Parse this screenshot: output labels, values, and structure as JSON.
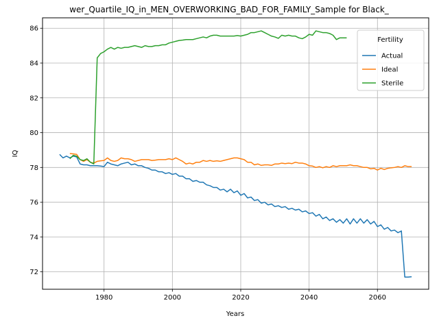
{
  "chart_data": {
    "type": "line",
    "title": "wer_Quartile_IQ_in_MEN_OVERWORKING_BAD_FOR_FAMILY_Sample for Black_",
    "xlabel": "Years",
    "ylabel": "IQ",
    "xlim": [
      1962,
      2075
    ],
    "ylim": [
      71.0,
      86.6
    ],
    "xticks": [
      1980,
      2000,
      2020,
      2040,
      2060
    ],
    "yticks": [
      72,
      74,
      76,
      78,
      80,
      82,
      84,
      86
    ],
    "grid": true,
    "legend": {
      "title": "Fertility",
      "placement": "top-right"
    },
    "series": [
      {
        "name": "Actual",
        "color": "#1f77b4",
        "points": [
          [
            1967,
            78.75
          ],
          [
            1968,
            78.55
          ],
          [
            1969,
            78.65
          ],
          [
            1970,
            78.55
          ],
          [
            1971,
            78.65
          ],
          [
            1972,
            78.6
          ],
          [
            1973,
            78.2
          ],
          [
            1974,
            78.15
          ],
          [
            1975,
            78.15
          ],
          [
            1976,
            78.1
          ],
          [
            1977,
            78.1
          ],
          [
            1978,
            78.1
          ],
          [
            1979,
            78.08
          ],
          [
            1980,
            78.05
          ],
          [
            1981,
            78.3
          ],
          [
            1982,
            78.2
          ],
          [
            1983,
            78.15
          ],
          [
            1984,
            78.1
          ],
          [
            1985,
            78.2
          ],
          [
            1986,
            78.25
          ],
          [
            1987,
            78.3
          ],
          [
            1988,
            78.15
          ],
          [
            1989,
            78.2
          ],
          [
            1990,
            78.1
          ],
          [
            1991,
            78.1
          ],
          [
            1992,
            78.0
          ],
          [
            1993,
            77.95
          ],
          [
            1994,
            77.85
          ],
          [
            1995,
            77.85
          ],
          [
            1996,
            77.75
          ],
          [
            1997,
            77.75
          ],
          [
            1998,
            77.65
          ],
          [
            1999,
            77.7
          ],
          [
            2000,
            77.6
          ],
          [
            2001,
            77.65
          ],
          [
            2002,
            77.5
          ],
          [
            2003,
            77.5
          ],
          [
            2004,
            77.35
          ],
          [
            2005,
            77.35
          ],
          [
            2006,
            77.2
          ],
          [
            2007,
            77.25
          ],
          [
            2008,
            77.15
          ],
          [
            2009,
            77.15
          ],
          [
            2010,
            77.0
          ],
          [
            2011,
            76.95
          ],
          [
            2012,
            76.85
          ],
          [
            2013,
            76.85
          ],
          [
            2014,
            76.7
          ],
          [
            2015,
            76.75
          ],
          [
            2016,
            76.6
          ],
          [
            2017,
            76.75
          ],
          [
            2018,
            76.55
          ],
          [
            2019,
            76.65
          ],
          [
            2020,
            76.4
          ],
          [
            2021,
            76.5
          ],
          [
            2022,
            76.25
          ],
          [
            2023,
            76.3
          ],
          [
            2024,
            76.1
          ],
          [
            2025,
            76.15
          ],
          [
            2026,
            75.95
          ],
          [
            2027,
            76.0
          ],
          [
            2028,
            75.85
          ],
          [
            2029,
            75.9
          ],
          [
            2030,
            75.75
          ],
          [
            2031,
            75.8
          ],
          [
            2032,
            75.7
          ],
          [
            2033,
            75.75
          ],
          [
            2034,
            75.6
          ],
          [
            2035,
            75.65
          ],
          [
            2036,
            75.55
          ],
          [
            2037,
            75.6
          ],
          [
            2038,
            75.45
          ],
          [
            2039,
            75.5
          ],
          [
            2040,
            75.35
          ],
          [
            2041,
            75.4
          ],
          [
            2042,
            75.2
          ],
          [
            2043,
            75.3
          ],
          [
            2044,
            75.05
          ],
          [
            2045,
            75.15
          ],
          [
            2046,
            74.95
          ],
          [
            2047,
            75.05
          ],
          [
            2048,
            74.85
          ],
          [
            2049,
            75.0
          ],
          [
            2050,
            74.8
          ],
          [
            2051,
            75.05
          ],
          [
            2052,
            74.75
          ],
          [
            2053,
            75.05
          ],
          [
            2054,
            74.8
          ],
          [
            2055,
            75.05
          ],
          [
            2056,
            74.8
          ],
          [
            2057,
            75.0
          ],
          [
            2058,
            74.75
          ],
          [
            2059,
            74.9
          ],
          [
            2060,
            74.6
          ],
          [
            2061,
            74.7
          ],
          [
            2062,
            74.45
          ],
          [
            2063,
            74.55
          ],
          [
            2064,
            74.35
          ],
          [
            2065,
            74.4
          ],
          [
            2066,
            74.25
          ],
          [
            2067,
            74.35
          ],
          [
            2068,
            71.7
          ],
          [
            2069,
            71.7
          ],
          [
            2070,
            71.72
          ]
        ]
      },
      {
        "name": "Ideal",
        "color": "#ff7f0e",
        "points": [
          [
            1970,
            78.8
          ],
          [
            1971,
            78.78
          ],
          [
            1972,
            78.75
          ],
          [
            1973,
            78.45
          ],
          [
            1974,
            78.35
          ],
          [
            1975,
            78.45
          ],
          [
            1976,
            78.3
          ],
          [
            1977,
            78.25
          ],
          [
            1978,
            78.35
          ],
          [
            1979,
            78.38
          ],
          [
            1980,
            78.4
          ],
          [
            1981,
            78.55
          ],
          [
            1982,
            78.4
          ],
          [
            1983,
            78.35
          ],
          [
            1984,
            78.4
          ],
          [
            1985,
            78.55
          ],
          [
            1986,
            78.5
          ],
          [
            1987,
            78.5
          ],
          [
            1988,
            78.45
          ],
          [
            1989,
            78.35
          ],
          [
            1990,
            78.4
          ],
          [
            1991,
            78.45
          ],
          [
            1992,
            78.45
          ],
          [
            1993,
            78.45
          ],
          [
            1994,
            78.4
          ],
          [
            1995,
            78.42
          ],
          [
            1996,
            78.45
          ],
          [
            1997,
            78.45
          ],
          [
            1998,
            78.45
          ],
          [
            1999,
            78.5
          ],
          [
            2000,
            78.45
          ],
          [
            2001,
            78.55
          ],
          [
            2002,
            78.45
          ],
          [
            2003,
            78.35
          ],
          [
            2004,
            78.2
          ],
          [
            2005,
            78.25
          ],
          [
            2006,
            78.2
          ],
          [
            2007,
            78.3
          ],
          [
            2008,
            78.3
          ],
          [
            2009,
            78.4
          ],
          [
            2010,
            78.35
          ],
          [
            2011,
            78.4
          ],
          [
            2012,
            78.35
          ],
          [
            2013,
            78.38
          ],
          [
            2014,
            78.35
          ],
          [
            2015,
            78.4
          ],
          [
            2016,
            78.45
          ],
          [
            2017,
            78.5
          ],
          [
            2018,
            78.55
          ],
          [
            2019,
            78.55
          ],
          [
            2020,
            78.5
          ],
          [
            2021,
            78.45
          ],
          [
            2022,
            78.3
          ],
          [
            2023,
            78.3
          ],
          [
            2024,
            78.15
          ],
          [
            2025,
            78.2
          ],
          [
            2026,
            78.12
          ],
          [
            2027,
            78.15
          ],
          [
            2028,
            78.15
          ],
          [
            2029,
            78.12
          ],
          [
            2030,
            78.2
          ],
          [
            2031,
            78.2
          ],
          [
            2032,
            78.25
          ],
          [
            2033,
            78.22
          ],
          [
            2034,
            78.25
          ],
          [
            2035,
            78.22
          ],
          [
            2036,
            78.3
          ],
          [
            2037,
            78.25
          ],
          [
            2038,
            78.25
          ],
          [
            2039,
            78.2
          ],
          [
            2040,
            78.1
          ],
          [
            2041,
            78.08
          ],
          [
            2042,
            78.0
          ],
          [
            2043,
            78.05
          ],
          [
            2044,
            77.98
          ],
          [
            2045,
            78.05
          ],
          [
            2046,
            78.0
          ],
          [
            2047,
            78.1
          ],
          [
            2048,
            78.05
          ],
          [
            2049,
            78.1
          ],
          [
            2050,
            78.1
          ],
          [
            2051,
            78.1
          ],
          [
            2052,
            78.15
          ],
          [
            2053,
            78.1
          ],
          [
            2054,
            78.1
          ],
          [
            2055,
            78.05
          ],
          [
            2056,
            78.0
          ],
          [
            2057,
            78.0
          ],
          [
            2058,
            77.92
          ],
          [
            2059,
            77.95
          ],
          [
            2060,
            77.85
          ],
          [
            2061,
            77.95
          ],
          [
            2062,
            77.88
          ],
          [
            2063,
            77.95
          ],
          [
            2064,
            77.98
          ],
          [
            2065,
            78.0
          ],
          [
            2066,
            78.05
          ],
          [
            2067,
            78.0
          ],
          [
            2068,
            78.1
          ],
          [
            2069,
            78.05
          ],
          [
            2070,
            78.05
          ]
        ]
      },
      {
        "name": "Sterile",
        "color": "#2ca02c",
        "points": [
          [
            1970,
            78.5
          ],
          [
            1971,
            78.7
          ],
          [
            1972,
            78.65
          ],
          [
            1973,
            78.45
          ],
          [
            1974,
            78.4
          ],
          [
            1975,
            78.5
          ],
          [
            1976,
            78.3
          ],
          [
            1977,
            78.2
          ],
          [
            1978,
            84.3
          ],
          [
            1979,
            84.55
          ],
          [
            1980,
            84.65
          ],
          [
            1981,
            84.8
          ],
          [
            1982,
            84.9
          ],
          [
            1983,
            84.8
          ],
          [
            1984,
            84.9
          ],
          [
            1985,
            84.85
          ],
          [
            1986,
            84.9
          ],
          [
            1987,
            84.9
          ],
          [
            1988,
            84.95
          ],
          [
            1989,
            85.0
          ],
          [
            1990,
            84.95
          ],
          [
            1991,
            84.9
          ],
          [
            1992,
            85.0
          ],
          [
            1993,
            84.95
          ],
          [
            1994,
            84.95
          ],
          [
            1995,
            85.0
          ],
          [
            1996,
            85.0
          ],
          [
            1997,
            85.05
          ],
          [
            1998,
            85.05
          ],
          [
            1999,
            85.15
          ],
          [
            2000,
            85.2
          ],
          [
            2001,
            85.25
          ],
          [
            2002,
            85.3
          ],
          [
            2003,
            85.32
          ],
          [
            2004,
            85.35
          ],
          [
            2005,
            85.35
          ],
          [
            2006,
            85.35
          ],
          [
            2007,
            85.4
          ],
          [
            2008,
            85.45
          ],
          [
            2009,
            85.5
          ],
          [
            2010,
            85.45
          ],
          [
            2011,
            85.55
          ],
          [
            2012,
            85.6
          ],
          [
            2013,
            85.6
          ],
          [
            2014,
            85.55
          ],
          [
            2015,
            85.55
          ],
          [
            2016,
            85.55
          ],
          [
            2017,
            85.55
          ],
          [
            2018,
            85.55
          ],
          [
            2019,
            85.58
          ],
          [
            2020,
            85.55
          ],
          [
            2021,
            85.6
          ],
          [
            2022,
            85.65
          ],
          [
            2023,
            85.75
          ],
          [
            2024,
            85.75
          ],
          [
            2025,
            85.8
          ],
          [
            2026,
            85.85
          ],
          [
            2027,
            85.75
          ],
          [
            2028,
            85.65
          ],
          [
            2029,
            85.55
          ],
          [
            2030,
            85.5
          ],
          [
            2031,
            85.42
          ],
          [
            2032,
            85.6
          ],
          [
            2033,
            85.55
          ],
          [
            2034,
            85.6
          ],
          [
            2035,
            85.55
          ],
          [
            2036,
            85.55
          ],
          [
            2037,
            85.45
          ],
          [
            2038,
            85.4
          ],
          [
            2039,
            85.5
          ],
          [
            2040,
            85.65
          ],
          [
            2041,
            85.6
          ],
          [
            2042,
            85.85
          ],
          [
            2043,
            85.8
          ],
          [
            2044,
            85.75
          ],
          [
            2045,
            85.75
          ],
          [
            2046,
            85.7
          ],
          [
            2047,
            85.6
          ],
          [
            2048,
            85.35
          ],
          [
            2049,
            85.45
          ],
          [
            2050,
            85.45
          ],
          [
            2051,
            85.45
          ]
        ]
      }
    ]
  }
}
